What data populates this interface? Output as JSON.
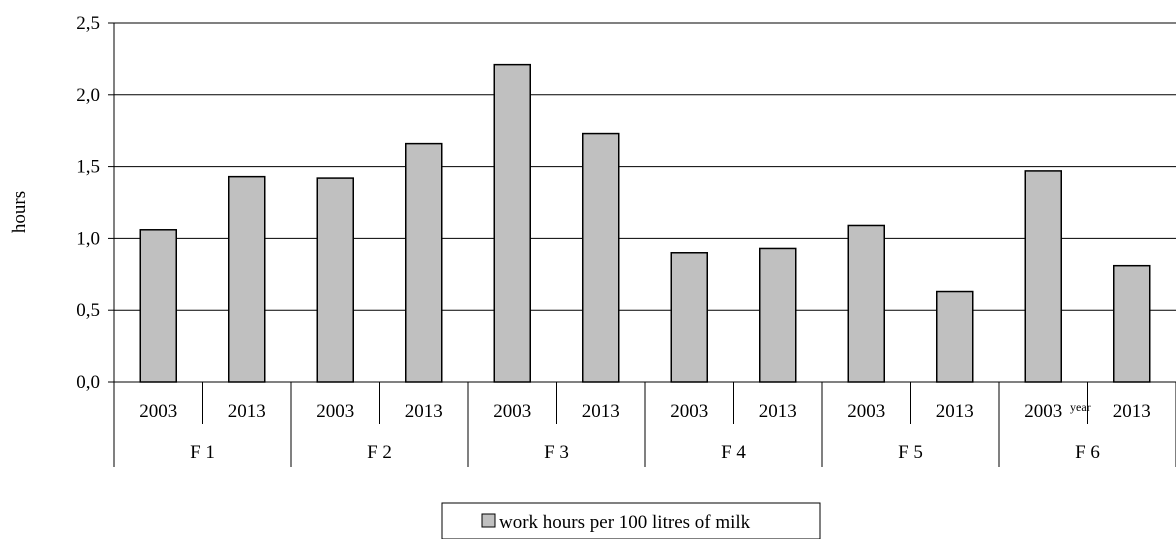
{
  "chart_data": {
    "type": "bar",
    "ylabel": "hours",
    "ylim": [
      0,
      2.5
    ],
    "yticks": [
      "0,0",
      "0,5",
      "1,0",
      "1,5",
      "2,0",
      "2,5"
    ],
    "grid": true,
    "groups": [
      "F 1",
      "F 2",
      "F 3",
      "F 4",
      "F 5",
      "F 6"
    ],
    "categories": [
      "2003",
      "2013",
      "2003",
      "2013",
      "2003",
      "2013",
      "2003",
      "2013",
      "2003",
      "2013",
      "2003",
      "2013"
    ],
    "series": [
      {
        "name": "work hours per 100 litres of milk",
        "values": [
          1.06,
          1.43,
          1.42,
          1.66,
          2.21,
          1.73,
          0.9,
          0.93,
          1.09,
          0.63,
          1.47,
          0.81
        ]
      }
    ],
    "annotation": "year",
    "legend_position": "bottom",
    "bar_color": "#c0c0c0"
  }
}
